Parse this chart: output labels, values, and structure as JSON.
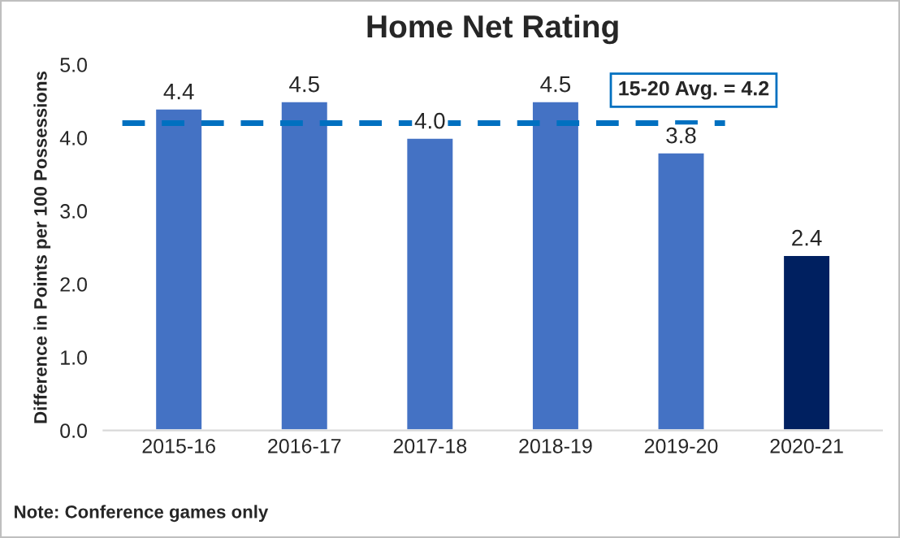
{
  "chart_data": {
    "type": "bar",
    "title": "Home Net Rating",
    "ylabel": "Difference in Points per 100 Possessions",
    "categories": [
      "2015-16",
      "2016-17",
      "2017-18",
      "2018-19",
      "2019-20",
      "2020-21"
    ],
    "values": [
      4.4,
      4.5,
      4.0,
      4.5,
      3.8,
      2.4
    ],
    "value_labels": [
      "4.4",
      "4.5",
      "4.0",
      "4.5",
      "3.8",
      "2.4"
    ],
    "colors": [
      "#4472c4",
      "#4472c4",
      "#4472c4",
      "#4472c4",
      "#4472c4",
      "#002060"
    ],
    "ylim": [
      0,
      5
    ],
    "yticks": [
      {
        "value": 0,
        "label": "0.0"
      },
      {
        "value": 1,
        "label": "1.0"
      },
      {
        "value": 2,
        "label": "2.0"
      },
      {
        "value": 3,
        "label": "3.0"
      },
      {
        "value": 4,
        "label": "4.0"
      },
      {
        "value": 5,
        "label": "5.0"
      }
    ],
    "ref_lines": [
      {
        "axis": "y",
        "value": 4.2,
        "label": "15-20 Avg. = 4.2",
        "color": "#0070c0",
        "line_style": "dashed"
      }
    ],
    "annotations": [
      "Note: Conference games only"
    ],
    "grid": false,
    "legend": false
  }
}
